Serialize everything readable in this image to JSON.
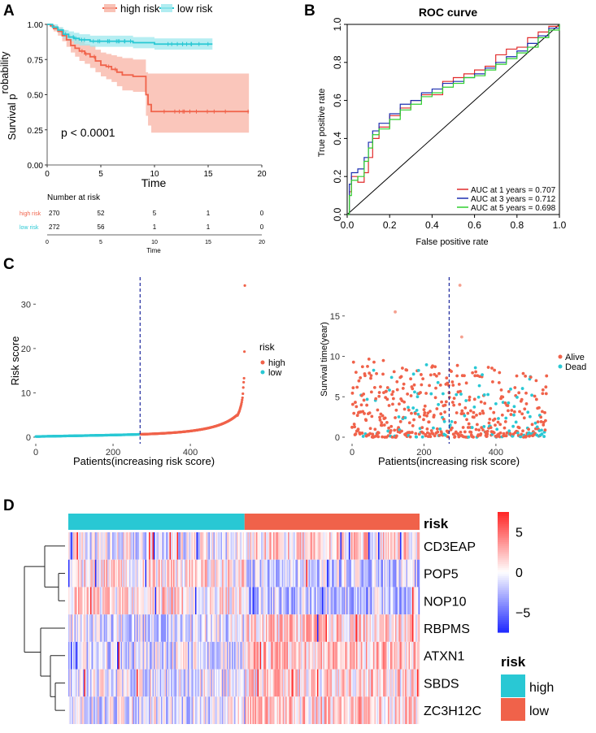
{
  "panel_letters": [
    "A",
    "B",
    "C",
    "D"
  ],
  "colors": {
    "high_risk": "#f0624a",
    "low_risk": "#29c8d4",
    "high_band": "#f8b3a4",
    "low_band": "#9ee8ee",
    "auc1": "#e12b2b",
    "auc3": "#1d2fb0",
    "auc5": "#2fcf2f",
    "hm_low": "#1f2de0",
    "hm_high": "#e01f1f",
    "dashed": "#1e2a9e"
  },
  "chart_data": [
    {
      "id": "A",
      "type": "line",
      "subtype": "kaplan-meier",
      "legend": [
        "high risk",
        "low risk"
      ],
      "xlabel": "Time",
      "ylabel": "Survival probability",
      "ylabel_parts": [
        "Survival p",
        "robability"
      ],
      "xlim": [
        0,
        20
      ],
      "ylim": [
        0,
        1
      ],
      "xticks": [
        "0",
        "5",
        "10",
        "15",
        "20"
      ],
      "yticks": [
        "0.00",
        "0.25",
        "0.50",
        "0.75",
        "1.00"
      ],
      "pvalue": "p < 0.0001",
      "series": [
        {
          "name": "high risk",
          "x": [
            0,
            0.3,
            0.6,
            1,
            1.4,
            1.8,
            2.2,
            2.6,
            3,
            3.5,
            4,
            4.5,
            5,
            5.5,
            6,
            6.5,
            7,
            7.5,
            8,
            8.5,
            9,
            9.2,
            9.4,
            9.7,
            10,
            12,
            15,
            18.8
          ],
          "y": [
            1,
            0.99,
            0.97,
            0.95,
            0.92,
            0.89,
            0.85,
            0.83,
            0.81,
            0.79,
            0.77,
            0.74,
            0.71,
            0.7,
            0.68,
            0.66,
            0.64,
            0.64,
            0.63,
            0.63,
            0.63,
            0.5,
            0.43,
            0.38,
            0.38,
            0.38,
            0.38,
            0.38
          ],
          "lower": [
            1,
            0.98,
            0.95,
            0.92,
            0.88,
            0.84,
            0.8,
            0.77,
            0.74,
            0.72,
            0.69,
            0.66,
            0.63,
            0.61,
            0.59,
            0.56,
            0.53,
            0.53,
            0.52,
            0.52,
            0.52,
            0.35,
            0.28,
            0.23,
            0.23,
            0.23,
            0.23,
            0.23
          ],
          "upper": [
            1,
            1,
            0.99,
            0.98,
            0.96,
            0.93,
            0.9,
            0.89,
            0.88,
            0.86,
            0.85,
            0.82,
            0.8,
            0.79,
            0.78,
            0.77,
            0.76,
            0.76,
            0.75,
            0.75,
            0.75,
            0.66,
            0.65,
            0.65,
            0.65,
            0.65,
            0.65,
            0.65
          ]
        },
        {
          "name": "low risk",
          "x": [
            0,
            0.5,
            1,
            1.5,
            2,
            2.5,
            3,
            4,
            5,
            6,
            8,
            10,
            12,
            14,
            15.4
          ],
          "y": [
            1,
            0.98,
            0.96,
            0.93,
            0.91,
            0.9,
            0.89,
            0.88,
            0.88,
            0.88,
            0.87,
            0.86,
            0.86,
            0.86,
            0.86
          ],
          "lower": [
            1,
            0.97,
            0.94,
            0.9,
            0.88,
            0.86,
            0.85,
            0.84,
            0.84,
            0.84,
            0.83,
            0.82,
            0.82,
            0.82,
            0.82
          ],
          "upper": [
            1,
            1,
            0.98,
            0.96,
            0.95,
            0.94,
            0.93,
            0.92,
            0.92,
            0.92,
            0.91,
            0.9,
            0.9,
            0.9,
            0.9
          ]
        }
      ],
      "risk_table": {
        "title": "Number at risk",
        "rows": [
          {
            "label": "high risk",
            "values": [
              "270",
              "52",
              "5",
              "1",
              "0"
            ]
          },
          {
            "label": "low risk",
            "values": [
              "272",
              "56",
              "1",
              "1",
              "0"
            ]
          }
        ],
        "xticks": [
          "0",
          "5",
          "10",
          "15",
          "20"
        ],
        "xlabel": "Time"
      }
    },
    {
      "id": "B",
      "type": "line",
      "subtype": "roc",
      "title": "ROC curve",
      "xlabel": "False positive rate",
      "ylabel": "True positive rate",
      "xlim": [
        0,
        1
      ],
      "ylim": [
        0,
        1
      ],
      "xticks": [
        "0.0",
        "0.2",
        "0.4",
        "0.6",
        "0.8",
        "1.0"
      ],
      "yticks": [
        "0.0",
        "0.2",
        "0.4",
        "0.6",
        "0.8",
        "1.0"
      ],
      "series": [
        {
          "name": "AUC at 1 years = 0.707",
          "x": [
            0,
            0.01,
            0.02,
            0.05,
            0.08,
            0.1,
            0.12,
            0.15,
            0.2,
            0.25,
            0.3,
            0.35,
            0.4,
            0.45,
            0.5,
            0.55,
            0.6,
            0.65,
            0.7,
            0.75,
            0.8,
            0.85,
            0.9,
            0.95,
            1
          ],
          "y": [
            0,
            0.12,
            0.2,
            0.17,
            0.22,
            0.3,
            0.4,
            0.46,
            0.52,
            0.56,
            0.6,
            0.63,
            0.63,
            0.7,
            0.72,
            0.74,
            0.76,
            0.78,
            0.84,
            0.87,
            0.88,
            0.93,
            0.96,
            0.99,
            1
          ]
        },
        {
          "name": "AUC at 3 years = 0.712",
          "x": [
            0,
            0.01,
            0.02,
            0.05,
            0.08,
            0.1,
            0.12,
            0.15,
            0.2,
            0.25,
            0.3,
            0.35,
            0.4,
            0.45,
            0.5,
            0.55,
            0.6,
            0.65,
            0.7,
            0.75,
            0.8,
            0.85,
            0.9,
            0.95,
            1
          ],
          "y": [
            0,
            0.16,
            0.22,
            0.24,
            0.3,
            0.38,
            0.44,
            0.48,
            0.53,
            0.58,
            0.6,
            0.64,
            0.66,
            0.69,
            0.7,
            0.72,
            0.74,
            0.77,
            0.8,
            0.83,
            0.86,
            0.9,
            0.94,
            0.98,
            1
          ]
        },
        {
          "name": "AUC at 5 years = 0.698",
          "x": [
            0,
            0.01,
            0.02,
            0.05,
            0.08,
            0.1,
            0.12,
            0.15,
            0.2,
            0.25,
            0.3,
            0.35,
            0.4,
            0.45,
            0.5,
            0.55,
            0.6,
            0.65,
            0.7,
            0.75,
            0.8,
            0.85,
            0.9,
            0.95,
            1
          ],
          "y": [
            0,
            0.1,
            0.18,
            0.2,
            0.28,
            0.35,
            0.42,
            0.45,
            0.5,
            0.55,
            0.58,
            0.62,
            0.64,
            0.67,
            0.69,
            0.72,
            0.73,
            0.76,
            0.79,
            0.82,
            0.85,
            0.88,
            0.93,
            0.97,
            1
          ]
        }
      ]
    },
    {
      "id": "C-left",
      "type": "scatter",
      "xlabel": "Patients(increasing risk score)",
      "ylabel": "Risk score",
      "xlim": [
        0,
        545
      ],
      "ylim": [
        0,
        35
      ],
      "xticks": [
        "0",
        "200",
        "400"
      ],
      "yticks": [
        "0",
        "10",
        "20",
        "30"
      ],
      "cutoff": 270,
      "legend_title": "risk",
      "legend": [
        "high",
        "low"
      ],
      "n_low": 272,
      "n_high": 270,
      "tail_values": [
        34.2,
        19.3,
        13.3,
        12.4,
        11.2,
        9.8,
        8.9,
        8.4,
        7.9,
        7.5,
        7.1,
        6.8,
        6.5,
        6.2,
        5.9,
        5.7,
        5.5,
        5.3,
        5.1,
        4.9
      ]
    },
    {
      "id": "C-right",
      "type": "scatter",
      "xlabel": "Patients(increasing risk score)",
      "ylabel": "Survival time(year)",
      "xlim": [
        0,
        545
      ],
      "ylim": [
        0,
        19
      ],
      "xticks": [
        "0",
        "200",
        "400"
      ],
      "yticks": [
        "0",
        "5",
        "10",
        "15"
      ],
      "cutoff": 270,
      "legend": [
        "Alive",
        "Dead"
      ],
      "highlights": [
        {
          "x": 120,
          "y": 15.5
        },
        {
          "x": 300,
          "y": 18.8
        },
        {
          "x": 305,
          "y": 12.4
        }
      ]
    },
    {
      "id": "D",
      "type": "heatmap",
      "annotation_label": "risk",
      "annotation_groups": [
        {
          "name": "low",
          "count": 272
        },
        {
          "name": "high",
          "count": 270
        }
      ],
      "rows": [
        "CD3EAP",
        "POP5",
        "NOP10",
        "RBPMS",
        "ATXN1",
        "SBDS",
        "ZC3H12C"
      ],
      "row_bias": [
        0.15,
        -0.2,
        -0.25,
        0.2,
        0.25,
        0.15,
        0.2
      ],
      "colorbar": {
        "ticks": [
          "5",
          "0",
          "−5"
        ],
        "min": -7.5,
        "max": 7.5
      },
      "legend_title": "risk",
      "legend": [
        "high",
        "low"
      ]
    }
  ]
}
